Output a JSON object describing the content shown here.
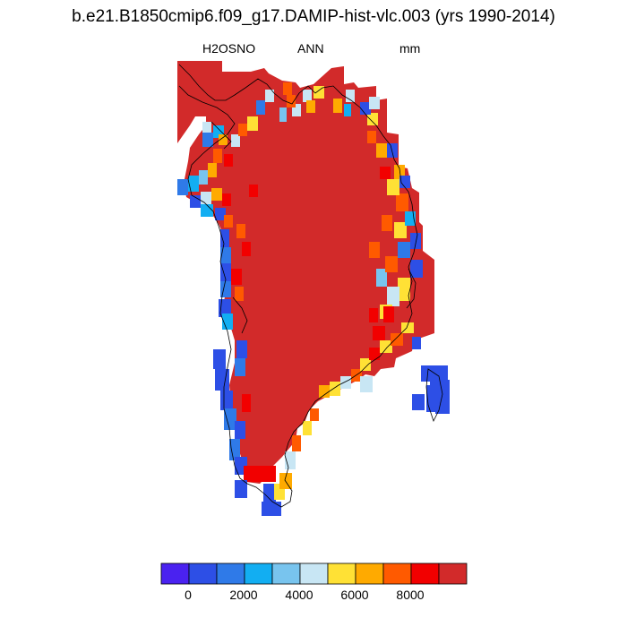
{
  "title": "b.e21.B1850cmip6.f09_g17.DAMIP-hist-vlc.003 (yrs 1990-2014)",
  "subtitle": {
    "variable": "H2OSNO",
    "season": "ANN",
    "units": "mm"
  },
  "colorbar": {
    "colors": [
      "#4a22f0",
      "#2d4fe6",
      "#2f7ae8",
      "#12aef2",
      "#78c4ee",
      "#c8e6f4",
      "#ffe135",
      "#ffaa00",
      "#ff5a00",
      "#f20000",
      "#d22a2a"
    ],
    "labels": [
      "0",
      "2000",
      "4000",
      "6000",
      "8000"
    ]
  },
  "colors": {
    "land": "#d22a2a",
    "coast": "#000000"
  }
}
